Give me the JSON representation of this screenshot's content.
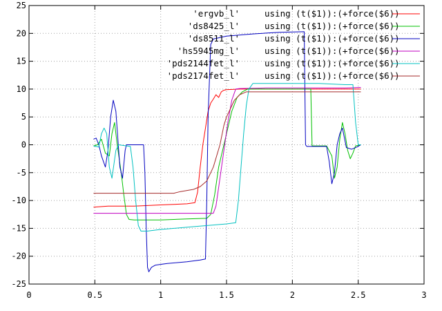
{
  "chart_data": {
    "type": "line",
    "title": "",
    "xlabel": "",
    "ylabel": "",
    "xlim": [
      0,
      3
    ],
    "ylim": [
      -25,
      25
    ],
    "grid": true,
    "legend_position": "top-right",
    "x_ticks": [
      "0",
      "0.5",
      "1",
      "1.5",
      "2",
      "2.5",
      "3"
    ],
    "y_ticks": [
      "25",
      "20",
      "15",
      "10",
      "5",
      "0",
      "-5",
      "-10",
      "-15",
      "-20",
      "-25"
    ],
    "series": [
      {
        "name": "'ergvb_l'",
        "legend_text": "using (t($1)):(+force($6))",
        "color": "#ff0000",
        "points": [
          [
            0.49,
            -11.2
          ],
          [
            0.6,
            -11.0
          ],
          [
            0.8,
            -11.0
          ],
          [
            1.0,
            -10.8
          ],
          [
            1.2,
            -10.6
          ],
          [
            1.26,
            -10.4
          ],
          [
            1.28,
            -8.5
          ],
          [
            1.3,
            -4.0
          ],
          [
            1.32,
            0.0
          ],
          [
            1.34,
            3.0
          ],
          [
            1.36,
            6.0
          ],
          [
            1.38,
            7.5
          ],
          [
            1.4,
            8.2
          ],
          [
            1.42,
            9.0
          ],
          [
            1.44,
            8.5
          ],
          [
            1.46,
            9.5
          ],
          [
            1.48,
            9.8
          ],
          [
            1.5,
            9.9
          ],
          [
            1.6,
            10.0
          ],
          [
            1.8,
            10.0
          ],
          [
            2.0,
            10.0
          ],
          [
            2.2,
            10.0
          ],
          [
            2.4,
            10.0
          ],
          [
            2.52,
            10.0
          ]
        ]
      },
      {
        "name": "'ds8425_l'",
        "legend_text": "using (t($1)):(+force($6))",
        "color": "#00c000",
        "points": [
          [
            0.49,
            -0.2
          ],
          [
            0.52,
            0.0
          ],
          [
            0.55,
            1.0
          ],
          [
            0.58,
            -1.5
          ],
          [
            0.61,
            -2.0
          ],
          [
            0.63,
            2.0
          ],
          [
            0.65,
            4.0
          ],
          [
            0.67,
            0.0
          ],
          [
            0.7,
            -5.0
          ],
          [
            0.72,
            -9.0
          ],
          [
            0.74,
            -12.5
          ],
          [
            0.76,
            -13.4
          ],
          [
            0.8,
            -13.5
          ],
          [
            1.0,
            -13.5
          ],
          [
            1.2,
            -13.3
          ],
          [
            1.35,
            -13.2
          ],
          [
            1.38,
            -12.5
          ],
          [
            1.41,
            -9.0
          ],
          [
            1.44,
            -4.0
          ],
          [
            1.46,
            -2.0
          ],
          [
            1.5,
            2.0
          ],
          [
            1.54,
            6.0
          ],
          [
            1.58,
            8.5
          ],
          [
            1.62,
            9.5
          ],
          [
            1.66,
            10.0
          ],
          [
            1.75,
            10.0
          ],
          [
            2.0,
            10.0
          ],
          [
            2.14,
            10.0
          ],
          [
            2.15,
            -0.2
          ],
          [
            2.2,
            -0.2
          ],
          [
            2.26,
            -0.2
          ],
          [
            2.3,
            -2.0
          ],
          [
            2.32,
            -6.0
          ],
          [
            2.34,
            -4.0
          ],
          [
            2.36,
            1.0
          ],
          [
            2.38,
            4.0
          ],
          [
            2.4,
            2.0
          ],
          [
            2.42,
            -1.0
          ],
          [
            2.44,
            -2.5
          ],
          [
            2.46,
            -1.5
          ],
          [
            2.48,
            -0.2
          ],
          [
            2.52,
            0.0
          ]
        ]
      },
      {
        "name": "'ds8511_l'",
        "legend_text": "using (t($1)):(+force($6))",
        "color": "#0000c0",
        "points": [
          [
            0.49,
            1.0
          ],
          [
            0.51,
            1.2
          ],
          [
            0.53,
            0.0
          ],
          [
            0.55,
            -2.0
          ],
          [
            0.58,
            -4.0
          ],
          [
            0.6,
            -1.0
          ],
          [
            0.62,
            5.0
          ],
          [
            0.64,
            8.0
          ],
          [
            0.66,
            6.0
          ],
          [
            0.69,
            -4.0
          ],
          [
            0.71,
            -6.0
          ],
          [
            0.73,
            -1.0
          ],
          [
            0.74,
            0.0
          ],
          [
            0.87,
            0.0
          ],
          [
            0.88,
            -5.0
          ],
          [
            0.89,
            -15.0
          ],
          [
            0.9,
            -22.0
          ],
          [
            0.91,
            -22.8
          ],
          [
            0.93,
            -22.0
          ],
          [
            0.96,
            -21.6
          ],
          [
            1.05,
            -21.3
          ],
          [
            1.2,
            -21.0
          ],
          [
            1.3,
            -20.7
          ],
          [
            1.34,
            -20.5
          ],
          [
            1.35,
            -10.0
          ],
          [
            1.36,
            5.0
          ],
          [
            1.38,
            18.0
          ],
          [
            1.4,
            19.0
          ],
          [
            1.5,
            19.5
          ],
          [
            1.7,
            19.9
          ],
          [
            1.9,
            20.2
          ],
          [
            2.09,
            20.3
          ],
          [
            2.1,
            0.0
          ],
          [
            2.11,
            -0.3
          ],
          [
            2.2,
            -0.3
          ],
          [
            2.26,
            -0.3
          ],
          [
            2.28,
            -3.0
          ],
          [
            2.3,
            -7.0
          ],
          [
            2.32,
            -5.0
          ],
          [
            2.34,
            0.0
          ],
          [
            2.36,
            2.0
          ],
          [
            2.38,
            3.0
          ],
          [
            2.41,
            -0.5
          ],
          [
            2.45,
            -0.8
          ],
          [
            2.49,
            -0.4
          ],
          [
            2.52,
            0.0
          ]
        ]
      },
      {
        "name": "'hs5945mg_l'",
        "legend_text": "using (t($1)):(+force($6))",
        "color": "#c000c0",
        "points": [
          [
            0.49,
            -12.3
          ],
          [
            0.7,
            -12.3
          ],
          [
            1.0,
            -12.3
          ],
          [
            1.3,
            -12.3
          ],
          [
            1.4,
            -12.3
          ],
          [
            1.42,
            -11.0
          ],
          [
            1.45,
            -6.0
          ],
          [
            1.48,
            -1.0
          ],
          [
            1.51,
            4.0
          ],
          [
            1.54,
            8.0
          ],
          [
            1.57,
            10.0
          ],
          [
            1.6,
            10.1
          ],
          [
            1.8,
            10.2
          ],
          [
            2.0,
            10.2
          ],
          [
            2.2,
            10.2
          ],
          [
            2.4,
            10.2
          ],
          [
            2.52,
            10.3
          ]
        ]
      },
      {
        "name": "'pds2144fet_l'",
        "legend_text": "using (t($1)):(+force($6))",
        "color": "#00c0c0",
        "points": [
          [
            0.49,
            -0.2
          ],
          [
            0.53,
            -0.4
          ],
          [
            0.55,
            2.0
          ],
          [
            0.57,
            3.0
          ],
          [
            0.59,
            2.0
          ],
          [
            0.61,
            -4.0
          ],
          [
            0.63,
            -6.0
          ],
          [
            0.66,
            -1.0
          ],
          [
            0.68,
            0.0
          ],
          [
            0.77,
            -0.3
          ],
          [
            0.79,
            -4.0
          ],
          [
            0.81,
            -10.0
          ],
          [
            0.83,
            -14.5
          ],
          [
            0.85,
            -15.5
          ],
          [
            0.9,
            -15.5
          ],
          [
            1.0,
            -15.2
          ],
          [
            1.2,
            -14.8
          ],
          [
            1.35,
            -14.5
          ],
          [
            1.5,
            -14.2
          ],
          [
            1.57,
            -14.0
          ],
          [
            1.59,
            -10.0
          ],
          [
            1.61,
            -4.0
          ],
          [
            1.63,
            2.0
          ],
          [
            1.65,
            7.0
          ],
          [
            1.67,
            10.0
          ],
          [
            1.7,
            11.0
          ],
          [
            1.8,
            11.0
          ],
          [
            2.0,
            11.0
          ],
          [
            2.2,
            11.0
          ],
          [
            2.4,
            10.8
          ],
          [
            2.46,
            10.8
          ],
          [
            2.48,
            4.0
          ],
          [
            2.5,
            0.0
          ],
          [
            2.52,
            0.0
          ]
        ]
      },
      {
        "name": "'pds2174fet_l'",
        "legend_text": "using (t($1)):(+force($6))",
        "color": "#a52a2a",
        "points": [
          [
            0.49,
            -8.7
          ],
          [
            0.7,
            -8.7
          ],
          [
            0.9,
            -8.7
          ],
          [
            1.0,
            -8.7
          ],
          [
            1.05,
            -8.7
          ],
          [
            1.1,
            -8.7
          ],
          [
            1.15,
            -8.4
          ],
          [
            1.2,
            -8.2
          ],
          [
            1.25,
            -8.0
          ],
          [
            1.3,
            -7.5
          ],
          [
            1.35,
            -6.5
          ],
          [
            1.4,
            -4.0
          ],
          [
            1.45,
            0.0
          ],
          [
            1.48,
            3.5
          ],
          [
            1.5,
            5.0
          ],
          [
            1.53,
            6.5
          ],
          [
            1.56,
            8.0
          ],
          [
            1.6,
            9.0
          ],
          [
            1.65,
            9.5
          ],
          [
            1.8,
            9.5
          ],
          [
            2.0,
            9.5
          ],
          [
            2.2,
            9.5
          ],
          [
            2.4,
            9.5
          ],
          [
            2.52,
            9.5
          ]
        ]
      }
    ]
  }
}
